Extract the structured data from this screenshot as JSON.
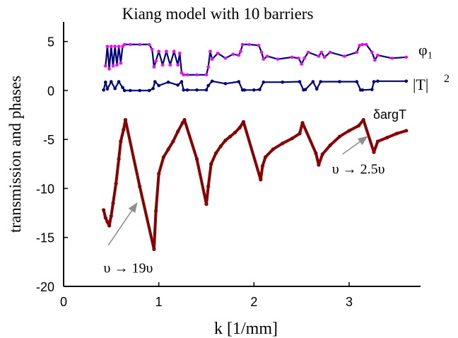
{
  "chart_data": {
    "type": "line",
    "title": "Kiang model with 10 barriers",
    "xlabel": "k [1/mm]",
    "ylabel": "transmission and phases",
    "xlim": [
      0,
      3.75
    ],
    "ylim": [
      -20,
      7
    ],
    "xticks": [
      "0",
      "1",
      "2",
      "3"
    ],
    "yticks": [
      "5",
      "0",
      "-5",
      "-10",
      "-15",
      "-20"
    ],
    "xtick_values": [
      0,
      1,
      2,
      3
    ],
    "ytick_values": [
      5,
      0,
      -5,
      -10,
      -15,
      -20
    ],
    "grid": false,
    "series": [
      {
        "name": "φ1",
        "color": "#ff00ff",
        "line_color": "#000080",
        "oscillating": true,
        "x": [
          0.44,
          0.46,
          0.48,
          0.5,
          0.52,
          0.54,
          0.56,
          0.58,
          0.6,
          0.62,
          0.64,
          0.7,
          0.8,
          0.9,
          0.93,
          0.95,
          0.97,
          1.0,
          1.04,
          1.08,
          1.12,
          1.16,
          1.2,
          1.22,
          1.24,
          1.26,
          1.3,
          1.4,
          1.5,
          1.52,
          1.54,
          1.56,
          1.62,
          1.7,
          1.78,
          1.84,
          1.86,
          1.88,
          1.95,
          2.05,
          2.08,
          2.1,
          2.14,
          2.25,
          2.4,
          2.47,
          2.5,
          2.53,
          2.57,
          2.68,
          2.71,
          2.74,
          2.8,
          2.95,
          3.08,
          3.11,
          3.14,
          3.18,
          3.24,
          3.27,
          3.3,
          3.45,
          3.6
        ],
        "y": [
          2.5,
          4.5,
          2.2,
          4.5,
          2.5,
          4.5,
          2.6,
          4.5,
          2.8,
          4.5,
          4.7,
          4.7,
          4.7,
          4.7,
          4.2,
          2.4,
          3.0,
          4.0,
          2.6,
          4.0,
          2.6,
          4.0,
          2.6,
          3.8,
          1.8,
          1.6,
          1.6,
          1.6,
          1.6,
          2.4,
          4.0,
          3.2,
          3.8,
          3.3,
          3.7,
          3.6,
          4.0,
          4.7,
          4.7,
          4.6,
          3.9,
          3.2,
          3.5,
          3.2,
          3.4,
          3.3,
          2.7,
          3.3,
          3.9,
          3.5,
          3.9,
          3.4,
          3.9,
          3.5,
          3.9,
          4.6,
          4.7,
          4.7,
          3.9,
          3.1,
          3.6,
          3.3,
          3.4
        ]
      },
      {
        "name": "|T|²",
        "color": "#000080",
        "oscillating": true,
        "x": [
          0.42,
          0.44,
          0.46,
          0.5,
          0.54,
          0.58,
          0.62,
          0.64,
          0.7,
          0.8,
          0.9,
          0.94,
          0.96,
          1.0,
          1.1,
          1.2,
          1.24,
          1.26,
          1.3,
          1.4,
          1.5,
          1.52,
          1.56,
          1.7,
          1.84,
          1.88,
          1.9,
          2.0,
          2.06,
          2.1,
          2.3,
          2.48,
          2.52,
          2.54,
          2.62,
          2.66,
          2.7,
          2.9,
          3.08,
          3.12,
          3.14,
          3.24,
          3.26,
          3.3,
          3.6
        ],
        "y": [
          0.05,
          0.85,
          0.15,
          0.9,
          0.2,
          0.9,
          0.3,
          0.0,
          0.0,
          0.0,
          0.0,
          0.2,
          0.9,
          0.5,
          0.85,
          0.55,
          0.9,
          0.05,
          0.05,
          0.05,
          0.05,
          0.5,
          0.95,
          0.7,
          0.9,
          0.05,
          0.05,
          0.05,
          0.1,
          0.85,
          0.85,
          0.9,
          0.05,
          0.1,
          0.9,
          0.15,
          0.9,
          0.9,
          0.9,
          0.05,
          0.05,
          0.1,
          0.9,
          0.95,
          0.95
        ]
      },
      {
        "name": "δargT",
        "color": "#8b0000",
        "oscillating": false,
        "x": [
          0.42,
          0.44,
          0.46,
          0.48,
          0.5,
          0.52,
          0.55,
          0.58,
          0.6,
          0.63,
          0.65,
          0.8,
          0.95,
          0.97,
          1.0,
          1.05,
          1.1,
          1.15,
          1.2,
          1.25,
          1.27,
          1.4,
          1.5,
          1.52,
          1.55,
          1.6,
          1.65,
          1.7,
          1.75,
          1.8,
          1.85,
          1.89,
          2.07,
          2.09,
          2.12,
          2.2,
          2.3,
          2.4,
          2.48,
          2.51,
          2.65,
          2.68,
          2.72,
          2.8,
          2.9,
          3.0,
          3.1,
          3.15,
          3.26,
          3.3,
          3.4,
          3.5,
          3.6
        ],
        "y": [
          -12.2,
          -13.0,
          -13.4,
          -13.8,
          -12.8,
          -11.5,
          -9.5,
          -7.0,
          -5.2,
          -4.0,
          -3.0,
          -9.8,
          -16.2,
          -12.3,
          -8.5,
          -6.8,
          -6.0,
          -5.2,
          -4.2,
          -3.3,
          -3.0,
          -7.0,
          -11.6,
          -9.8,
          -7.5,
          -6.4,
          -5.7,
          -5.1,
          -4.7,
          -4.3,
          -3.8,
          -3.2,
          -9.1,
          -7.7,
          -6.8,
          -6.0,
          -5.4,
          -4.9,
          -4.4,
          -3.3,
          -6.4,
          -7.6,
          -6.5,
          -5.6,
          -4.7,
          -4.1,
          -3.6,
          -3.0,
          -6.3,
          -5.2,
          -4.8,
          -4.4,
          -4.1
        ]
      }
    ],
    "labels": {
      "phi_label": "φ₁",
      "t_label": "|T|",
      "t_sup": "2",
      "darg_label": "δargT"
    },
    "annotations": [
      {
        "text": "υ → 19υ",
        "x": 0.42,
        "y": -18.6,
        "arrow_from": [
          0.47,
          -15.8
        ],
        "arrow_to": [
          0.77,
          -11.5
        ]
      },
      {
        "text": "υ → 2.5υ",
        "x": 2.82,
        "y": -8.5,
        "arrow_from": [
          2.93,
          -6.5
        ],
        "arrow_to": [
          3.19,
          -4.7
        ]
      }
    ]
  }
}
